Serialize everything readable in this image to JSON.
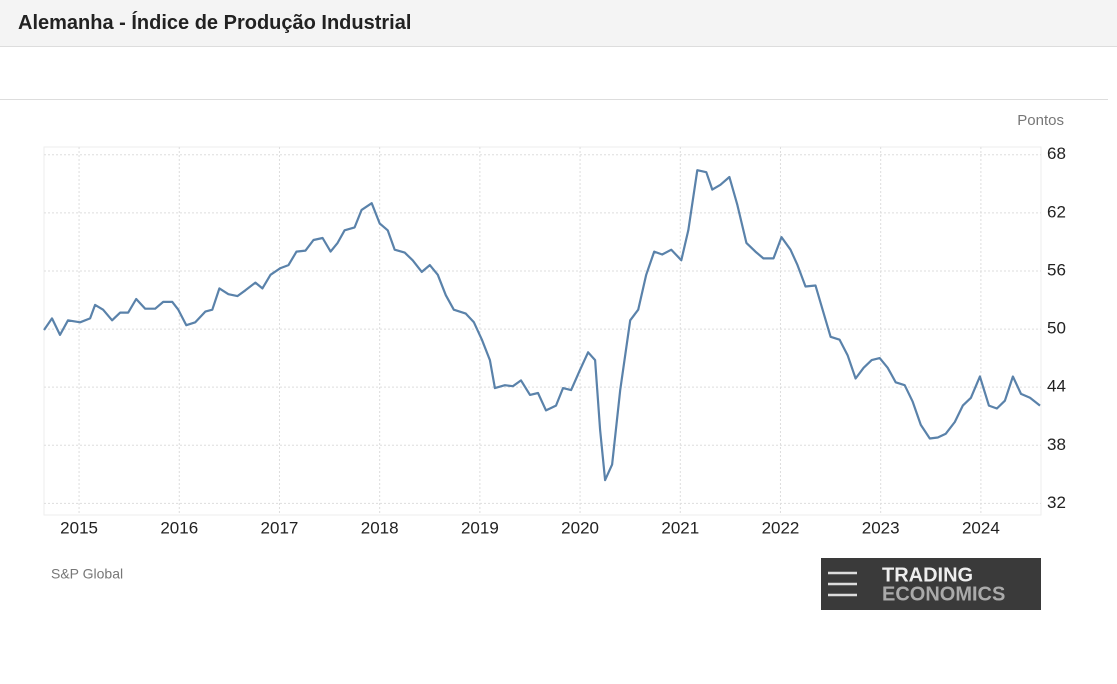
{
  "header": {
    "title": "Alemanha - Índice de Produção Industrial"
  },
  "logo": {
    "line1": "TRADING",
    "line2": "ECONOMICS"
  },
  "chart_data": {
    "type": "line",
    "unit_label": "Pontos",
    "source": "S&P Global",
    "color": "#5a82aa",
    "grid": true,
    "xlim": [
      2014.65,
      2024.6
    ],
    "xticks": [
      2015,
      2016,
      2017,
      2018,
      2019,
      2020,
      2021,
      2022,
      2023,
      2024
    ],
    "ylim": [
      30.8,
      68.8
    ],
    "yticks": [
      32,
      38,
      44,
      50,
      56,
      62,
      68
    ],
    "x": [
      2014.65,
      2014.73,
      2014.81,
      2014.89,
      2015.01,
      2015.11,
      2015.16,
      2015.24,
      2015.33,
      2015.41,
      2015.49,
      2015.57,
      2015.66,
      2015.76,
      2015.84,
      2015.93,
      2015.99,
      2016.07,
      2016.16,
      2016.26,
      2016.33,
      2016.4,
      2016.49,
      2016.58,
      2016.66,
      2016.76,
      2016.83,
      2016.91,
      2017.01,
      2017.09,
      2017.17,
      2017.26,
      2017.34,
      2017.43,
      2017.51,
      2017.58,
      2017.65,
      2017.75,
      2017.82,
      2017.92,
      2018.0,
      2018.08,
      2018.15,
      2018.25,
      2018.33,
      2018.42,
      2018.5,
      2018.58,
      2018.66,
      2018.74,
      2018.86,
      2018.94,
      2019.02,
      2019.1,
      2019.15,
      2019.25,
      2019.33,
      2019.41,
      2019.5,
      2019.58,
      2019.66,
      2019.76,
      2019.83,
      2019.91,
      2020.0,
      2020.08,
      2020.15,
      2020.2,
      2020.25,
      2020.32,
      2020.4,
      2020.5,
      2020.58,
      2020.66,
      2020.74,
      2020.82,
      2020.91,
      2021.01,
      2021.08,
      2021.17,
      2021.26,
      2021.32,
      2021.4,
      2021.49,
      2021.57,
      2021.66,
      2021.75,
      2021.83,
      2021.93,
      2022.01,
      2022.1,
      2022.17,
      2022.25,
      2022.35,
      2022.42,
      2022.5,
      2022.59,
      2022.67,
      2022.75,
      2022.83,
      2022.91,
      2022.99,
      2023.07,
      2023.15,
      2023.24,
      2023.32,
      2023.4,
      2023.49,
      2023.57,
      2023.65,
      2023.74,
      2023.82,
      2023.9,
      2023.99,
      2024.08,
      2024.16,
      2024.24,
      2024.32,
      2024.4,
      2024.49,
      2024.59
    ],
    "values": [
      49.9,
      51.1,
      49.4,
      50.9,
      50.7,
      51.1,
      52.5,
      52,
      50.9,
      51.7,
      51.7,
      53.1,
      52.1,
      52.1,
      52.8,
      52.8,
      52,
      50.4,
      50.7,
      51.8,
      52,
      54.2,
      53.6,
      53.4,
      54,
      54.8,
      54.2,
      55.6,
      56.3,
      56.6,
      58,
      58.1,
      59.2,
      59.4,
      58,
      58.9,
      60.2,
      60.5,
      62.3,
      63,
      60.9,
      60.2,
      58.2,
      57.9,
      57.1,
      55.9,
      56.6,
      55.6,
      53.5,
      52,
      51.6,
      50.7,
      48.9,
      46.8,
      43.9,
      44.2,
      44.1,
      44.7,
      43.2,
      43.4,
      41.6,
      42.1,
      43.9,
      43.7,
      45.8,
      47.6,
      46.8,
      39.6,
      34.4,
      36,
      43.7,
      50.9,
      52,
      55.6,
      58,
      57.7,
      58.2,
      57.1,
      60.2,
      66.4,
      66.2,
      64.4,
      64.9,
      65.7,
      62.8,
      58.9,
      58,
      57.3,
      57.3,
      59.5,
      58.2,
      56.6,
      54.4,
      54.5,
      52,
      49.2,
      48.9,
      47.3,
      44.9,
      46,
      46.8,
      47,
      46,
      44.5,
      44.2,
      42.5,
      40.1,
      38.7,
      38.8,
      39.2,
      40.4,
      42.1,
      42.9,
      45.1,
      42.1,
      41.8,
      42.6,
      45.1,
      43.3,
      42.9,
      42.1
    ]
  }
}
